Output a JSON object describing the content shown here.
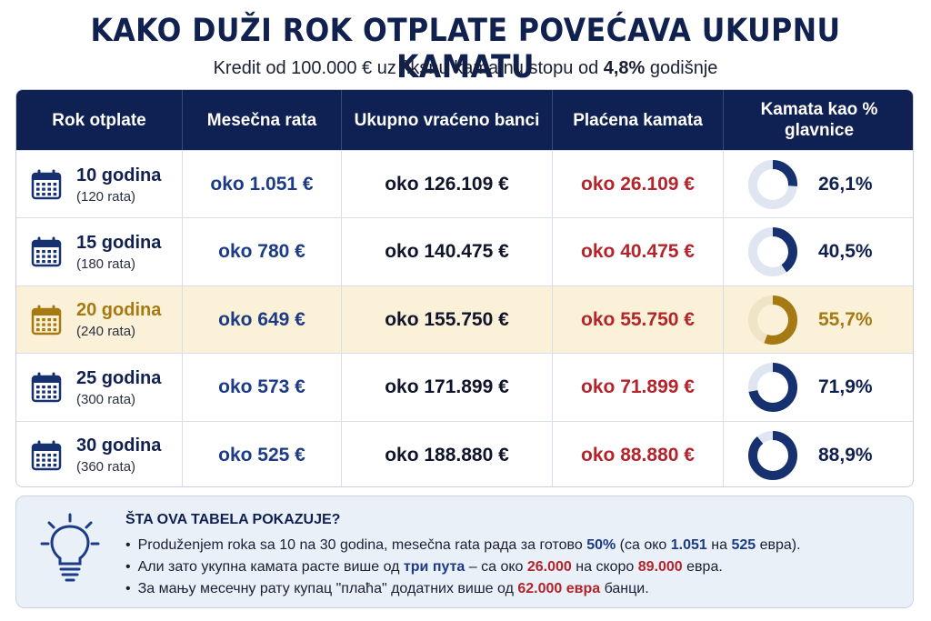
{
  "title": "KAKO DUŽI ROK OTPLATE POVEĆAVA UKUPNU KAMATU",
  "subtitle": {
    "before": "Kredit od 100.000 € uz fiksnu kamatnu stopu od ",
    "rate": "4,8%",
    "after": " godišnje"
  },
  "headers": {
    "term": "Rok otplate",
    "monthly": "Mesečna rata",
    "total": "Ukupno vraćeno banci",
    "interest": "Plaćena kamata",
    "percent": "Kamata kao % glavnice"
  },
  "rows": [
    {
      "term": "10 godina",
      "installments": "(120 rata)",
      "monthly": "oko 1.051 €",
      "total": "oko 126.109 €",
      "interest": "oko 26.109 €",
      "percent_label": "26,1%",
      "percent": 26.1
    },
    {
      "term": "15 godina",
      "installments": "(180 rata)",
      "monthly": "oko 780 €",
      "total": "oko 140.475 €",
      "interest": "oko 40.475 €",
      "percent_label": "40,5%",
      "percent": 40.5
    },
    {
      "term": "20 godina",
      "installments": "(240 rata)",
      "monthly": "oko 649 €",
      "total": "oko 155.750 €",
      "interest": "oko 55.750 €",
      "percent_label": "55,7%",
      "percent": 55.7
    },
    {
      "term": "25 godina",
      "installments": "(300 rata)",
      "monthly": "oko 573 €",
      "total": "oko 171.899 €",
      "interest": "oko 71.899 €",
      "percent_label": "71,9%",
      "percent": 71.9
    },
    {
      "term": "30 godina",
      "installments": "(360 rata)",
      "monthly": "oko 525 €",
      "total": "oko 188.880 €",
      "interest": "oko 88.880 €",
      "percent_label": "88,9%",
      "percent": 88.9
    }
  ],
  "highlight_row": 2,
  "colors": {
    "header_bg": "#0f2152",
    "monthly": "#1c3b86",
    "interest": "#b3242b",
    "highlight_bg": "#fbf1d8",
    "highlight_accent": "#a57a12",
    "donut_track": "#dfe6f2",
    "donut_fill": "#17306f"
  },
  "info": {
    "title": "ŠTA OVA TABELA POKAZUJE?",
    "b1": {
      "t1": "Produženjem roka sa 10 na 30 godina, mesečna rata рада за готово ",
      "e1": "50%",
      "t2": " (са око ",
      "e2": "1.051",
      "t3": " на ",
      "e3": "525",
      "t4": " евра)."
    },
    "b2": {
      "t1": "Али зато укупна камата расте више од ",
      "e1": "три пута",
      "t2": " – са око ",
      "e2": "26.000",
      "t3": " на скоро ",
      "e3": "89.000",
      "t4": " евра."
    },
    "b3": {
      "t1": "За мању месечну рату купац \"плаћа\" додатних више од ",
      "e1": "62.000 евра",
      "t2": " банци."
    }
  }
}
